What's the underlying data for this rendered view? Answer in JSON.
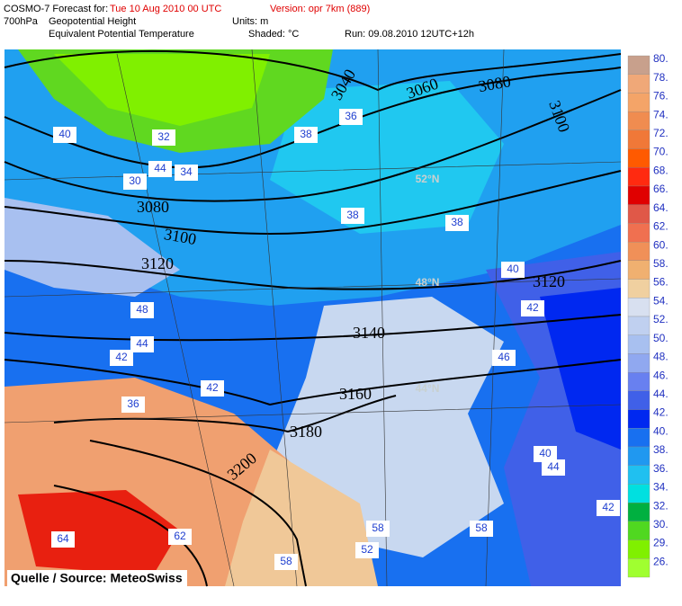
{
  "header": {
    "model": "COSMO-7 Forecast for:",
    "valid": "Tue 10 Aug 2010 00 UTC",
    "version": "Version: opr 7km (889)",
    "level": "700hPa",
    "field1": "Geopotential Height",
    "units": "Units: m",
    "field2": "Equivalent Potential Temperature",
    "shaded": "Shaded: °C",
    "run": "Run: 09.08.2010 12UTC+12h"
  },
  "colorbar": {
    "labels": [
      "80.",
      "78.",
      "76.",
      "74.",
      "72.",
      "70.",
      "68.",
      "66.",
      "64.",
      "62.",
      "60.",
      "58.",
      "56.",
      "54.",
      "52.",
      "50.",
      "48.",
      "46.",
      "44.",
      "42.",
      "40.",
      "38.",
      "36.",
      "34.",
      "32.",
      "30.",
      "29.",
      "26."
    ],
    "colors": [
      "#c8a08c",
      "#f0a878",
      "#f4a468",
      "#f08c50",
      "#f07838",
      "#ff5a00",
      "#ff2a10",
      "#e00000",
      "#e05848",
      "#f07050",
      "#f09058",
      "#f0b070",
      "#f0d0a0",
      "#d8e0f0",
      "#c0d0f0",
      "#a8c0f0",
      "#90a8f0",
      "#6880f0",
      "#4060e8",
      "#0028f0",
      "#1870f0",
      "#2098f0",
      "#20c0f0",
      "#00e0e0",
      "#00b040",
      "#50d820",
      "#80f000",
      "#a0ff30"
    ]
  },
  "contour_labels": [
    "3040",
    "3060",
    "3080",
    "3100",
    "3080",
    "3100",
    "3120",
    "3120",
    "3140",
    "3160",
    "3180",
    "3200"
  ],
  "lat_labels": [
    "52°N",
    "48°N",
    "44°N"
  ],
  "value_labels": [
    "40",
    "32",
    "34",
    "44",
    "30",
    "36",
    "38",
    "38",
    "40",
    "42",
    "48",
    "44",
    "42",
    "42",
    "36",
    "58",
    "62",
    "64",
    "58",
    "52",
    "58",
    "46",
    "44",
    "40",
    "42",
    "38"
  ],
  "source": "Quelle / Source: MeteoSwiss"
}
